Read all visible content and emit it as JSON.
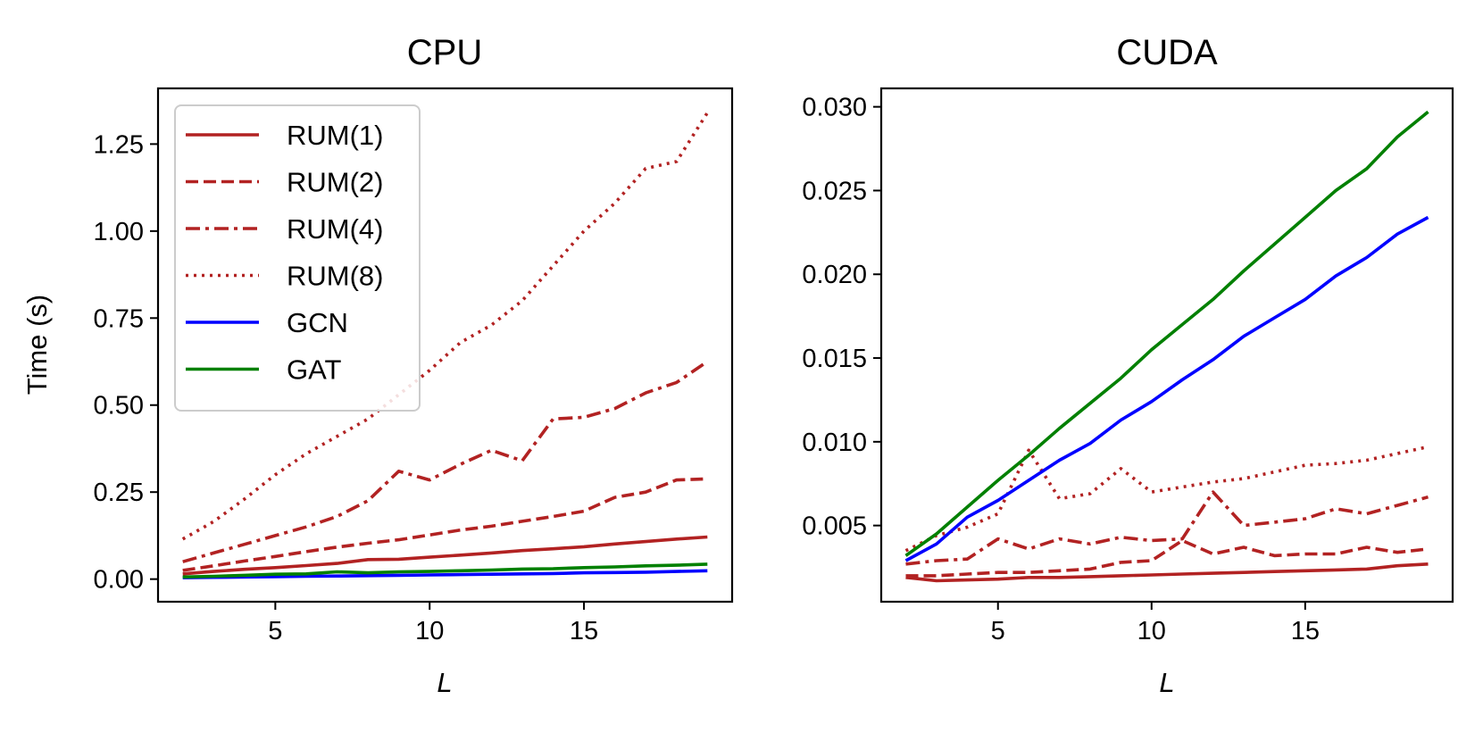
{
  "chart_data": [
    {
      "type": "line",
      "title": "CPU",
      "xlabel": "L",
      "ylabel": "Time (s)",
      "xlim": [
        1.2,
        19.8
      ],
      "ylim": [
        -0.065,
        1.41
      ],
      "xticks": [
        5,
        10,
        15
      ],
      "xtick_labels": [
        "5",
        "10",
        "15"
      ],
      "yticks": [
        0,
        0.25,
        0.5,
        0.75,
        1.0,
        1.25
      ],
      "ytick_labels": [
        "0.00",
        "0.25",
        "0.50",
        "0.75",
        "1.00",
        "1.25"
      ],
      "legend_position": "upper-left",
      "x": [
        2,
        3,
        4,
        5,
        6,
        7,
        8,
        9,
        10,
        11,
        12,
        13,
        14,
        15,
        16,
        17,
        18,
        19
      ],
      "series": [
        {
          "name": "RUM(1)",
          "color": "#b22222",
          "dash": "solid",
          "values": [
            0.015,
            0.022,
            0.028,
            0.033,
            0.039,
            0.045,
            0.056,
            0.057,
            0.063,
            0.069,
            0.075,
            0.082,
            0.087,
            0.093,
            0.101,
            0.108,
            0.115,
            0.121
          ]
        },
        {
          "name": "RUM(2)",
          "color": "#b22222",
          "dash": "dashed",
          "values": [
            0.025,
            0.038,
            0.052,
            0.065,
            0.079,
            0.092,
            0.103,
            0.113,
            0.127,
            0.141,
            0.152,
            0.166,
            0.18,
            0.195,
            0.235,
            0.25,
            0.285,
            0.288
          ]
        },
        {
          "name": "RUM(4)",
          "color": "#b22222",
          "dash": "dashdot",
          "values": [
            0.05,
            0.075,
            0.1,
            0.125,
            0.15,
            0.18,
            0.225,
            0.31,
            0.285,
            0.33,
            0.37,
            0.34,
            0.46,
            0.465,
            0.49,
            0.535,
            0.565,
            0.625
          ]
        },
        {
          "name": "RUM(8)",
          "color": "#b22222",
          "dash": "dotted",
          "values": [
            0.115,
            0.165,
            0.23,
            0.3,
            0.36,
            0.41,
            0.46,
            0.53,
            0.6,
            0.68,
            0.73,
            0.8,
            0.9,
            1.0,
            1.08,
            1.18,
            1.2,
            1.34
          ]
        },
        {
          "name": "GCN",
          "color": "#0000ff",
          "dash": "solid",
          "values": [
            0.004,
            0.005,
            0.006,
            0.007,
            0.008,
            0.009,
            0.01,
            0.011,
            0.012,
            0.013,
            0.014,
            0.015,
            0.016,
            0.018,
            0.019,
            0.02,
            0.022,
            0.024
          ]
        },
        {
          "name": "GAT",
          "color": "#008000",
          "dash": "solid",
          "values": [
            0.006,
            0.008,
            0.011,
            0.014,
            0.015,
            0.021,
            0.018,
            0.021,
            0.022,
            0.024,
            0.026,
            0.029,
            0.03,
            0.033,
            0.035,
            0.038,
            0.04,
            0.043
          ]
        }
      ]
    },
    {
      "type": "line",
      "title": "CUDA",
      "xlabel": "L",
      "ylabel": "",
      "xlim": [
        1.2,
        19.8
      ],
      "ylim": [
        0.00045,
        0.0311
      ],
      "xticks": [
        5,
        10,
        15
      ],
      "xtick_labels": [
        "5",
        "10",
        "15"
      ],
      "yticks": [
        0.005,
        0.01,
        0.015,
        0.02,
        0.025,
        0.03
      ],
      "ytick_labels": [
        "0.005",
        "0.010",
        "0.015",
        "0.020",
        "0.025",
        "0.030"
      ],
      "x": [
        2,
        3,
        4,
        5,
        6,
        7,
        8,
        9,
        10,
        11,
        12,
        13,
        14,
        15,
        16,
        17,
        18,
        19
      ],
      "series": [
        {
          "name": "RUM(1)",
          "color": "#b22222",
          "dash": "solid",
          "values": [
            0.0019,
            0.0017,
            0.00175,
            0.0018,
            0.0019,
            0.0019,
            0.00195,
            0.002,
            0.00205,
            0.0021,
            0.00215,
            0.0022,
            0.00225,
            0.0023,
            0.00235,
            0.0024,
            0.0026,
            0.0027
          ]
        },
        {
          "name": "RUM(2)",
          "color": "#b22222",
          "dash": "dashed",
          "values": [
            0.002,
            0.002,
            0.0021,
            0.0022,
            0.0022,
            0.0023,
            0.0024,
            0.0028,
            0.0029,
            0.0041,
            0.0033,
            0.0037,
            0.0032,
            0.0033,
            0.0033,
            0.0037,
            0.0034,
            0.0036
          ]
        },
        {
          "name": "RUM(4)",
          "color": "#b22222",
          "dash": "dashdot",
          "values": [
            0.0027,
            0.0029,
            0.003,
            0.0042,
            0.0036,
            0.0042,
            0.0039,
            0.0043,
            0.0041,
            0.0042,
            0.007,
            0.005,
            0.0052,
            0.0054,
            0.006,
            0.0057,
            0.0062,
            0.0067
          ]
        },
        {
          "name": "RUM(8)",
          "color": "#b22222",
          "dash": "dotted",
          "values": [
            0.0035,
            0.0044,
            0.0049,
            0.0057,
            0.0095,
            0.0066,
            0.0069,
            0.0084,
            0.007,
            0.0073,
            0.0076,
            0.0078,
            0.0082,
            0.0086,
            0.0087,
            0.0089,
            0.0093,
            0.0097
          ]
        },
        {
          "name": "GCN",
          "color": "#0000ff",
          "dash": "solid",
          "values": [
            0.0029,
            0.0039,
            0.0055,
            0.0065,
            0.0077,
            0.0089,
            0.0099,
            0.0113,
            0.0124,
            0.0137,
            0.0149,
            0.0163,
            0.0174,
            0.0185,
            0.0199,
            0.021,
            0.0224,
            0.0234
          ]
        },
        {
          "name": "GAT",
          "color": "#008000",
          "dash": "solid",
          "values": [
            0.0032,
            0.0045,
            0.0061,
            0.0077,
            0.0092,
            0.0108,
            0.0123,
            0.0138,
            0.0155,
            0.017,
            0.0185,
            0.0202,
            0.0218,
            0.0234,
            0.025,
            0.0263,
            0.0282,
            0.0297
          ]
        }
      ]
    }
  ]
}
